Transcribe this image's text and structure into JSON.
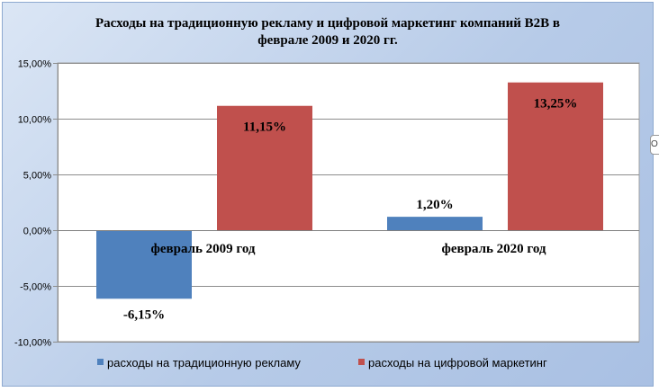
{
  "chart_data": {
    "type": "bar",
    "title": "Расходы на традиционную  рекламу и цифровой маркетинг компаний B2B в феврале 2009 и 2020 гг.",
    "title_lines": [
      "Расходы на традиционную  рекламу и цифровой маркетинг компаний B2B в",
      "феврале 2009 и 2020 гг."
    ],
    "categories": [
      "февраль 2009 год",
      "февраль 2020 год"
    ],
    "series": [
      {
        "name": "расходы на традиционную рекламу",
        "values": [
          -6.15,
          1.2
        ],
        "color": "#4f81bd"
      },
      {
        "name": "расходы на цифровой маркетинг",
        "values": [
          11.15,
          13.25
        ],
        "color": "#c0504d"
      }
    ],
    "data_labels": [
      [
        "-6,15%",
        "1,20%"
      ],
      [
        "11,15%",
        "13,25%"
      ]
    ],
    "ylim": [
      -10,
      15
    ],
    "yticks": [
      15,
      10,
      5,
      0,
      -5,
      -10
    ],
    "ytick_labels": [
      "15,00%",
      "10,00%",
      "5,00%",
      "0,00%",
      "-5,00%",
      "-10,00%"
    ],
    "grid": true,
    "legend_position": "bottom",
    "xlabel": "",
    "ylabel": ""
  },
  "side_handle_text": "О"
}
